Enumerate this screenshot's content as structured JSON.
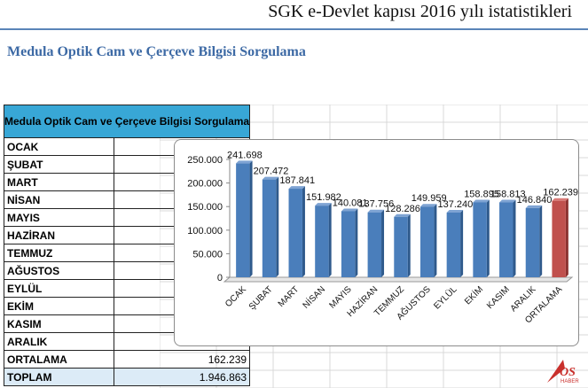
{
  "header": {
    "title": "SGK e-Devlet kapısı 2016 yılı istatistikleri"
  },
  "subtitle": "Medula Optik  Cam ve Çerçeve Bilgisi Sorgulama",
  "table": {
    "header": "Medula Optik Cam ve Çerçeve Bilgisi Sorgulama",
    "rows": [
      {
        "label": "OCAK",
        "value": "241.698"
      },
      {
        "label": "ŞUBAT",
        "value": "207.472"
      },
      {
        "label": "MART",
        "value": "187.841"
      },
      {
        "label": "NİSAN",
        "value": "151.982"
      },
      {
        "label": "MAYIS",
        "value": "140.081"
      },
      {
        "label": "HAZİRAN",
        "value": "137.756"
      },
      {
        "label": "TEMMUZ",
        "value": "128.286"
      },
      {
        "label": "AĞUSTOS",
        "value": "149.959"
      },
      {
        "label": "EYLÜL",
        "value": "137.240"
      },
      {
        "label": "EKİM",
        "value": "158.895"
      },
      {
        "label": "KASIM",
        "value": "158.813"
      },
      {
        "label": "ARALIK",
        "value": "146.840"
      },
      {
        "label": "ORTALAMA",
        "value": "162.239"
      }
    ],
    "total": {
      "label": "TOPLAM",
      "value": "1.946.863"
    }
  },
  "logo": {
    "text": "OS",
    "subtext": "HABER"
  },
  "colors": {
    "bar": "#4a7ebb",
    "bar_highlight": "#c0504d",
    "header_line": "#5a84b8",
    "table_header": "#38a7d6",
    "subtitle": "#3d6aa5"
  },
  "chart_data": {
    "type": "bar",
    "categories": [
      "OCAK",
      "ŞUBAT",
      "MART",
      "NİSAN",
      "MAYIS",
      "HAZİRAN",
      "TEMMUZ",
      "AĞUSTOS",
      "EYLÜL",
      "EKİM",
      "KASIM",
      "ARALIK",
      "ORTALAMA"
    ],
    "values": [
      241698,
      207472,
      187841,
      151982,
      140081,
      137756,
      128286,
      149959,
      137240,
      158895,
      158813,
      146840,
      162239
    ],
    "value_labels": [
      "241.698",
      "207.472",
      "187.841",
      "151.982",
      "140.081",
      "137.756",
      "128.286",
      "149.959",
      "137.240",
      "158.895",
      "158.813",
      "146.840",
      "162.239"
    ],
    "ylim": [
      0,
      250000
    ],
    "yticks": [
      0,
      50000,
      100000,
      150000,
      200000,
      250000
    ],
    "ytick_labels": [
      "0",
      "50.000",
      "100.000",
      "150.000",
      "200.000",
      "250.000"
    ],
    "highlight_category": "ORTALAMA",
    "grid": false,
    "legend": "none"
  }
}
